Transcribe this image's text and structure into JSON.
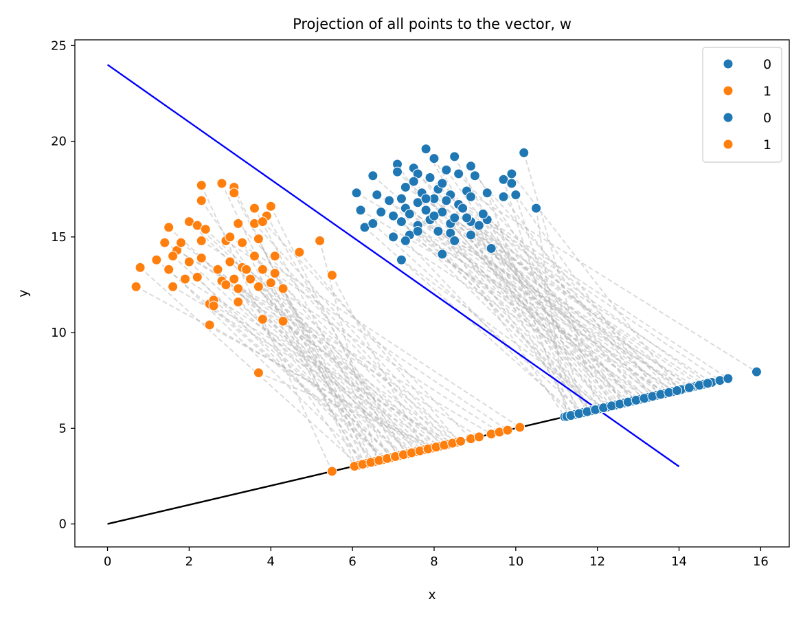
{
  "chart_data": {
    "type": "scatter",
    "title": "Projection of all points to the vector, w",
    "xlabel": "x",
    "ylabel": "y",
    "xlim": [
      -0.8,
      16.7
    ],
    "ylim": [
      -1.2,
      25.3
    ],
    "xticks": [
      "0",
      "2",
      "4",
      "6",
      "8",
      "10",
      "12",
      "14",
      "16"
    ],
    "yticks": [
      "0",
      "5",
      "10",
      "15",
      "20",
      "25"
    ],
    "grid": false,
    "legend_position": "top-right",
    "legend": [
      {
        "label": "0",
        "color": "#1f77b4"
      },
      {
        "label": "1",
        "color": "#ff7f0e"
      },
      {
        "label": "0",
        "color": "#1f77b4"
      },
      {
        "label": "1",
        "color": "#ff7f0e"
      }
    ],
    "lines": [
      {
        "name": "w",
        "color": "#000000",
        "x": [
          0,
          14
        ],
        "y": [
          0,
          7
        ]
      },
      {
        "name": "boundary",
        "color": "#0000ff",
        "x": [
          0,
          14
        ],
        "y": [
          24,
          3
        ]
      }
    ],
    "series": [
      {
        "name": "0",
        "color": "#1f77b4",
        "points": [
          [
            7.1,
            18.8
          ],
          [
            7.8,
            19.6
          ],
          [
            8.0,
            19.1
          ],
          [
            8.5,
            19.2
          ],
          [
            10.2,
            19.4
          ],
          [
            7.5,
            18.6
          ],
          [
            8.3,
            18.5
          ],
          [
            8.9,
            18.7
          ],
          [
            6.5,
            18.2
          ],
          [
            7.1,
            18.4
          ],
          [
            7.6,
            18.3
          ],
          [
            7.9,
            18.1
          ],
          [
            8.6,
            18.3
          ],
          [
            9.0,
            18.2
          ],
          [
            9.9,
            18.3
          ],
          [
            6.1,
            17.3
          ],
          [
            6.6,
            17.2
          ],
          [
            7.3,
            17.6
          ],
          [
            7.7,
            17.3
          ],
          [
            8.1,
            17.5
          ],
          [
            8.4,
            17.2
          ],
          [
            8.8,
            17.4
          ],
          [
            9.3,
            17.3
          ],
          [
            9.7,
            18.0
          ],
          [
            9.9,
            17.8
          ],
          [
            6.9,
            16.9
          ],
          [
            7.2,
            17.0
          ],
          [
            7.6,
            16.8
          ],
          [
            8.0,
            17.0
          ],
          [
            8.3,
            16.9
          ],
          [
            8.6,
            16.7
          ],
          [
            8.9,
            17.1
          ],
          [
            9.7,
            17.1
          ],
          [
            10.0,
            17.2
          ],
          [
            6.2,
            16.4
          ],
          [
            6.7,
            16.3
          ],
          [
            7.3,
            16.5
          ],
          [
            7.8,
            16.4
          ],
          [
            8.2,
            16.3
          ],
          [
            8.7,
            16.5
          ],
          [
            10.5,
            16.5
          ],
          [
            6.3,
            15.5
          ],
          [
            6.5,
            15.7
          ],
          [
            7.2,
            15.8
          ],
          [
            7.6,
            15.6
          ],
          [
            7.9,
            15.9
          ],
          [
            8.4,
            15.7
          ],
          [
            8.9,
            15.8
          ],
          [
            9.3,
            15.9
          ],
          [
            7.0,
            15.0
          ],
          [
            7.4,
            15.1
          ],
          [
            7.6,
            15.3
          ],
          [
            8.1,
            15.3
          ],
          [
            8.4,
            15.2
          ],
          [
            8.9,
            15.1
          ],
          [
            9.1,
            15.6
          ],
          [
            7.3,
            14.8
          ],
          [
            8.5,
            14.8
          ],
          [
            9.4,
            14.4
          ],
          [
            8.2,
            14.1
          ],
          [
            7.2,
            13.8
          ],
          [
            7.5,
            17.9
          ],
          [
            8.2,
            17.8
          ],
          [
            7.0,
            16.1
          ],
          [
            8.0,
            16.1
          ],
          [
            7.4,
            16.2
          ],
          [
            8.5,
            16.0
          ],
          [
            7.8,
            17.0
          ],
          [
            8.8,
            16.0
          ],
          [
            9.2,
            16.2
          ]
        ],
        "projections": [
          [
            11.2,
            5.6
          ],
          [
            11.4,
            5.7
          ],
          [
            11.6,
            5.8
          ],
          [
            11.8,
            5.9
          ],
          [
            12.0,
            6.0
          ],
          [
            12.2,
            6.1
          ],
          [
            12.4,
            6.2
          ],
          [
            12.6,
            6.3
          ],
          [
            12.8,
            6.4
          ],
          [
            13.0,
            6.5
          ],
          [
            13.2,
            6.6
          ],
          [
            13.4,
            6.7
          ],
          [
            13.6,
            6.8
          ],
          [
            13.8,
            6.9
          ],
          [
            14.0,
            7.0
          ],
          [
            14.2,
            7.1
          ],
          [
            14.4,
            7.2
          ],
          [
            14.6,
            7.3
          ],
          [
            14.8,
            7.4
          ],
          [
            15.0,
            7.5
          ],
          [
            15.2,
            7.6
          ],
          [
            15.9,
            7.95
          ],
          [
            11.3,
            5.65
          ],
          [
            11.5,
            5.75
          ],
          [
            11.7,
            5.85
          ],
          [
            11.9,
            5.95
          ],
          [
            12.1,
            6.05
          ],
          [
            12.3,
            6.15
          ],
          [
            12.5,
            6.25
          ],
          [
            12.7,
            6.35
          ],
          [
            12.9,
            6.45
          ],
          [
            13.1,
            6.55
          ],
          [
            13.3,
            6.65
          ],
          [
            13.5,
            6.75
          ],
          [
            13.7,
            6.85
          ],
          [
            13.9,
            6.95
          ],
          [
            14.1,
            7.05
          ],
          [
            14.3,
            7.15
          ],
          [
            14.5,
            7.25
          ],
          [
            14.7,
            7.35
          ],
          [
            11.25,
            5.62
          ],
          [
            11.45,
            5.72
          ],
          [
            11.65,
            5.82
          ],
          [
            11.85,
            5.92
          ],
          [
            12.05,
            6.02
          ],
          [
            12.25,
            6.12
          ],
          [
            12.45,
            6.22
          ],
          [
            12.65,
            6.32
          ],
          [
            12.85,
            6.42
          ],
          [
            13.05,
            6.52
          ],
          [
            13.25,
            6.62
          ],
          [
            13.45,
            6.72
          ],
          [
            13.65,
            6.82
          ],
          [
            13.85,
            6.92
          ],
          [
            14.05,
            7.02
          ],
          [
            14.25,
            7.12
          ],
          [
            11.35,
            5.67
          ],
          [
            11.55,
            5.77
          ],
          [
            11.75,
            5.87
          ],
          [
            11.95,
            5.97
          ],
          [
            12.15,
            6.07
          ],
          [
            12.35,
            6.17
          ],
          [
            12.55,
            6.27
          ],
          [
            12.75,
            6.37
          ],
          [
            12.95,
            6.47
          ],
          [
            13.15,
            6.57
          ],
          [
            13.35,
            6.67
          ],
          [
            13.55,
            6.77
          ],
          [
            13.75,
            6.87
          ],
          [
            13.95,
            6.97
          ]
        ]
      },
      {
        "name": "1",
        "color": "#ff7f0e",
        "points": [
          [
            2.3,
            17.7
          ],
          [
            2.8,
            17.8
          ],
          [
            3.1,
            17.6
          ],
          [
            3.1,
            17.3
          ],
          [
            2.3,
            16.9
          ],
          [
            3.6,
            16.5
          ],
          [
            4.0,
            16.6
          ],
          [
            3.9,
            16.1
          ],
          [
            1.5,
            15.5
          ],
          [
            2.0,
            15.8
          ],
          [
            2.2,
            15.6
          ],
          [
            2.4,
            15.4
          ],
          [
            3.2,
            15.7
          ],
          [
            3.6,
            15.7
          ],
          [
            3.8,
            15.8
          ],
          [
            1.4,
            14.7
          ],
          [
            1.7,
            14.3
          ],
          [
            2.3,
            14.8
          ],
          [
            2.9,
            14.8
          ],
          [
            3.0,
            15.0
          ],
          [
            3.3,
            14.7
          ],
          [
            3.7,
            14.9
          ],
          [
            5.2,
            14.8
          ],
          [
            1.2,
            13.8
          ],
          [
            1.6,
            14.0
          ],
          [
            2.0,
            13.7
          ],
          [
            2.3,
            13.9
          ],
          [
            2.7,
            13.3
          ],
          [
            3.0,
            13.7
          ],
          [
            3.3,
            13.4
          ],
          [
            3.6,
            14.0
          ],
          [
            4.1,
            14.0
          ],
          [
            4.7,
            14.2
          ],
          [
            0.8,
            13.4
          ],
          [
            1.5,
            13.3
          ],
          [
            2.2,
            12.9
          ],
          [
            2.8,
            12.7
          ],
          [
            3.1,
            12.8
          ],
          [
            3.5,
            12.8
          ],
          [
            3.8,
            13.3
          ],
          [
            4.1,
            13.1
          ],
          [
            5.5,
            13.0
          ],
          [
            0.7,
            12.4
          ],
          [
            1.6,
            12.4
          ],
          [
            1.9,
            12.8
          ],
          [
            2.9,
            12.5
          ],
          [
            3.2,
            12.3
          ],
          [
            3.7,
            12.4
          ],
          [
            4.0,
            12.6
          ],
          [
            4.3,
            12.3
          ],
          [
            2.5,
            11.5
          ],
          [
            2.6,
            11.7
          ],
          [
            3.2,
            11.6
          ],
          [
            3.8,
            10.7
          ],
          [
            4.3,
            10.6
          ],
          [
            2.5,
            10.4
          ],
          [
            3.7,
            7.9
          ],
          [
            1.8,
            14.7
          ],
          [
            2.6,
            11.4
          ],
          [
            3.4,
            13.3
          ]
        ],
        "projections": [
          [
            5.5,
            2.75
          ],
          [
            6.1,
            3.05
          ],
          [
            6.3,
            3.15
          ],
          [
            6.5,
            3.25
          ],
          [
            6.7,
            3.35
          ],
          [
            6.9,
            3.45
          ],
          [
            7.1,
            3.55
          ],
          [
            7.3,
            3.65
          ],
          [
            7.5,
            3.75
          ],
          [
            7.7,
            3.85
          ],
          [
            7.9,
            3.95
          ],
          [
            8.1,
            4.05
          ],
          [
            8.3,
            4.15
          ],
          [
            8.5,
            4.25
          ],
          [
            8.9,
            4.45
          ],
          [
            9.1,
            4.55
          ],
          [
            9.4,
            4.7
          ],
          [
            9.6,
            4.8
          ],
          [
            9.8,
            4.9
          ],
          [
            10.1,
            5.05
          ],
          [
            6.2,
            3.1
          ],
          [
            6.4,
            3.2
          ],
          [
            6.6,
            3.3
          ],
          [
            6.8,
            3.4
          ],
          [
            7.0,
            3.5
          ],
          [
            7.2,
            3.6
          ],
          [
            7.4,
            3.7
          ],
          [
            7.6,
            3.8
          ],
          [
            7.8,
            3.9
          ],
          [
            8.0,
            4.0
          ],
          [
            8.2,
            4.1
          ],
          [
            8.4,
            4.2
          ],
          [
            8.6,
            4.3
          ],
          [
            6.15,
            3.07
          ],
          [
            6.35,
            3.17
          ],
          [
            6.55,
            3.27
          ],
          [
            6.75,
            3.37
          ],
          [
            6.95,
            3.47
          ],
          [
            7.15,
            3.57
          ],
          [
            7.35,
            3.67
          ],
          [
            7.55,
            3.77
          ],
          [
            7.75,
            3.87
          ],
          [
            7.95,
            3.97
          ],
          [
            8.15,
            4.07
          ],
          [
            8.35,
            4.17
          ],
          [
            8.55,
            4.27
          ],
          [
            6.05,
            3.02
          ],
          [
            6.25,
            3.12
          ],
          [
            6.45,
            3.22
          ],
          [
            6.65,
            3.32
          ],
          [
            6.85,
            3.42
          ],
          [
            7.05,
            3.52
          ],
          [
            7.25,
            3.62
          ],
          [
            7.45,
            3.72
          ],
          [
            7.65,
            3.82
          ],
          [
            7.85,
            3.92
          ],
          [
            8.05,
            4.02
          ],
          [
            8.25,
            4.12
          ],
          [
            8.45,
            4.22
          ],
          [
            8.65,
            4.32
          ]
        ]
      }
    ]
  }
}
